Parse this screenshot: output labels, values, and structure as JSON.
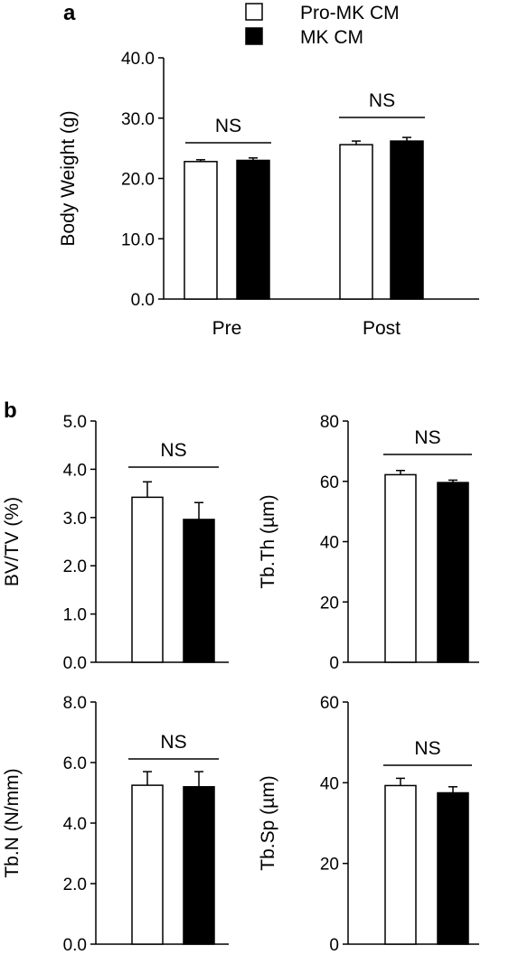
{
  "panel_labels": {
    "a": "a",
    "b": "b"
  },
  "legend": [
    {
      "label": "Pro-MK CM",
      "fill": "#ffffff"
    },
    {
      "label": "MK CM",
      "fill": "#000000"
    }
  ],
  "chart_data": [
    {
      "panel": "a",
      "type": "bar",
      "ylabel": "Body Weight (g)",
      "categories": [
        "Pre",
        "Post"
      ],
      "series": [
        {
          "name": "Pro-MK CM",
          "values": [
            22.8,
            25.6
          ],
          "errors": [
            0.3,
            0.6
          ]
        },
        {
          "name": "MK CM",
          "values": [
            23.0,
            26.2
          ],
          "errors": [
            0.4,
            0.6
          ]
        }
      ],
      "ylim": [
        0,
        40
      ],
      "yticks": [
        "0.0",
        "10.0",
        "20.0",
        "30.0",
        "40.0"
      ],
      "annotations": [
        "NS",
        "NS"
      ]
    },
    {
      "panel": "b",
      "type": "bar",
      "ylabel": "BV/TV (%)",
      "series": [
        {
          "name": "Pro-MK CM",
          "values": [
            3.42
          ],
          "errors": [
            0.32
          ]
        },
        {
          "name": "MK CM",
          "values": [
            2.96
          ],
          "errors": [
            0.35
          ]
        }
      ],
      "ylim": [
        0,
        5
      ],
      "yticks": [
        "0.0",
        "1.0",
        "2.0",
        "3.0",
        "4.0",
        "5.0"
      ],
      "annotations": [
        "NS"
      ]
    },
    {
      "panel": "b",
      "type": "bar",
      "ylabel": "Tb.Th (µm)",
      "series": [
        {
          "name": "Pro-MK CM",
          "values": [
            62.2
          ],
          "errors": [
            1.4
          ]
        },
        {
          "name": "MK CM",
          "values": [
            59.6
          ],
          "errors": [
            0.8
          ]
        }
      ],
      "ylim": [
        0,
        80
      ],
      "yticks": [
        "0",
        "20",
        "40",
        "60",
        "80"
      ],
      "annotations": [
        "NS"
      ]
    },
    {
      "panel": "b",
      "type": "bar",
      "ylabel": "Tb.N (N/mm)",
      "series": [
        {
          "name": "Pro-MK CM",
          "values": [
            5.25
          ],
          "errors": [
            0.45
          ]
        },
        {
          "name": "MK CM",
          "values": [
            5.2
          ],
          "errors": [
            0.5
          ]
        }
      ],
      "ylim": [
        0,
        8
      ],
      "yticks": [
        "0.0",
        "2.0",
        "4.0",
        "6.0",
        "8.0"
      ],
      "annotations": [
        "NS"
      ]
    },
    {
      "panel": "b",
      "type": "bar",
      "ylabel": "Tb.Sp (µm)",
      "series": [
        {
          "name": "Pro-MK CM",
          "values": [
            39.3
          ],
          "errors": [
            1.8
          ]
        },
        {
          "name": "MK CM",
          "values": [
            37.5
          ],
          "errors": [
            1.5
          ]
        }
      ],
      "ylim": [
        0,
        60
      ],
      "yticks": [
        "0",
        "20",
        "40",
        "60"
      ],
      "annotations": [
        "NS"
      ]
    }
  ]
}
